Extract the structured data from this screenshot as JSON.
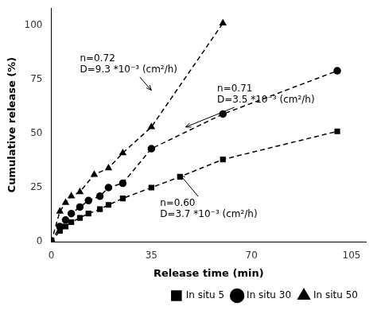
{
  "chart_data": {
    "type": "line",
    "xlabel": "Release time (min)",
    "ylabel": "Cumulative release (%)",
    "xlim": [
      0,
      110
    ],
    "ylim": [
      0,
      108
    ],
    "xticks": [
      0,
      35,
      70,
      105
    ],
    "yticks": [
      0,
      25,
      50,
      75,
      100
    ],
    "grid": false,
    "legend": "lower right",
    "series": [
      {
        "name": "In situ 5",
        "color": "#000000",
        "marker": "square",
        "line_style": "dashed",
        "x": [
          0,
          3,
          5,
          7,
          10,
          13,
          17,
          20,
          25,
          35,
          45,
          60,
          100
        ],
        "values": [
          0,
          5,
          7,
          9,
          11,
          13,
          15,
          17,
          20,
          25,
          30,
          38,
          51
        ]
      },
      {
        "name": "In situ 30",
        "color": "#000000",
        "marker": "circle",
        "line_style": "dashed",
        "x": [
          0,
          3,
          5,
          7,
          10,
          13,
          17,
          20,
          25,
          35,
          60,
          100
        ],
        "values": [
          0,
          7,
          10,
          13,
          16,
          19,
          21,
          25,
          27,
          43,
          59,
          79
        ]
      },
      {
        "name": "In situ 50",
        "color": "#000000",
        "marker": "triangle",
        "line_style": "dashed",
        "x": [
          0,
          3,
          5,
          7,
          10,
          15,
          20,
          25,
          35,
          60
        ],
        "values": [
          0,
          14,
          18,
          21,
          23,
          31,
          34,
          41,
          53,
          101
        ]
      }
    ],
    "annotations": [
      {
        "text": "n=0.72\nD=9.3 *10⁻³ (cm²/h)",
        "xy": [
          35,
          70
        ],
        "xytext": [
          10,
          82
        ]
      },
      {
        "text": "n=0.71\nD=3.5 *10⁻³ (cm²/h)",
        "xy": [
          47,
          53
        ],
        "xytext": [
          58,
          68
        ]
      },
      {
        "text": "n=0.60\nD=3.7 *10⁻³ (cm²/h)",
        "xy": [
          45,
          31
        ],
        "xytext": [
          38,
          15
        ]
      }
    ]
  }
}
